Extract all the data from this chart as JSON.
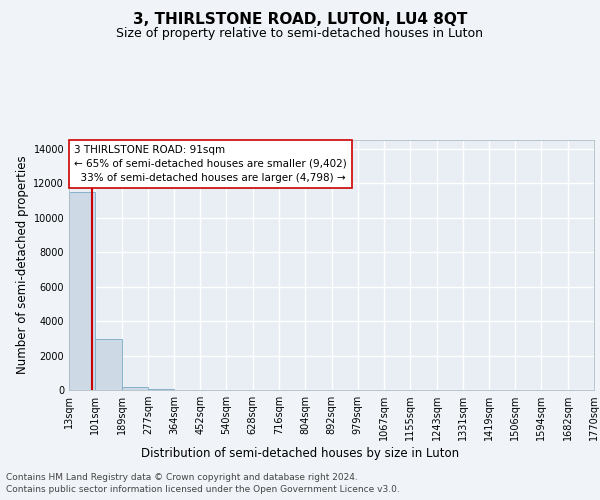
{
  "title": "3, THIRLSTONE ROAD, LUTON, LU4 8QT",
  "subtitle": "Size of property relative to semi-detached houses in Luton",
  "xlabel": "Distribution of semi-detached houses by size in Luton",
  "ylabel": "Number of semi-detached properties",
  "bin_edges": [
    13,
    101,
    189,
    277,
    364,
    452,
    540,
    628,
    716,
    804,
    892,
    979,
    1067,
    1155,
    1243,
    1331,
    1419,
    1506,
    1594,
    1682,
    1770
  ],
  "bin_labels": [
    "13sqm",
    "101sqm",
    "189sqm",
    "277sqm",
    "364sqm",
    "452sqm",
    "540sqm",
    "628sqm",
    "716sqm",
    "804sqm",
    "892sqm",
    "979sqm",
    "1067sqm",
    "1155sqm",
    "1243sqm",
    "1331sqm",
    "1419sqm",
    "1506sqm",
    "1594sqm",
    "1682sqm",
    "1770sqm"
  ],
  "bar_heights": [
    11500,
    2950,
    150,
    50,
    15,
    8,
    4,
    4,
    4,
    3,
    2,
    2,
    2,
    1,
    1,
    1,
    1,
    1,
    1,
    1
  ],
  "bar_color": "#cdd9e5",
  "bar_edge_color": "#7aaac8",
  "property_size": 91,
  "property_label": "3 THIRLSTONE ROAD: 91sqm",
  "smaller_pct": "65%",
  "smaller_count": "9,402",
  "larger_pct": "33%",
  "larger_count": "4,798",
  "vline_color": "#cc0000",
  "annotation_box_color": "#ffffff",
  "annotation_box_edge_color": "#cc0000",
  "ylim": [
    0,
    14500
  ],
  "yticks": [
    0,
    2000,
    4000,
    6000,
    8000,
    10000,
    12000,
    14000
  ],
  "footer_line1": "Contains HM Land Registry data © Crown copyright and database right 2024.",
  "footer_line2": "Contains public sector information licensed under the Open Government Licence v3.0.",
  "bg_color": "#f0f4f8",
  "plot_bg_color": "#e8eef4",
  "grid_color": "#ffffff",
  "title_fontsize": 11,
  "subtitle_fontsize": 9,
  "axis_label_fontsize": 8.5,
  "tick_fontsize": 7,
  "footer_fontsize": 6.5
}
